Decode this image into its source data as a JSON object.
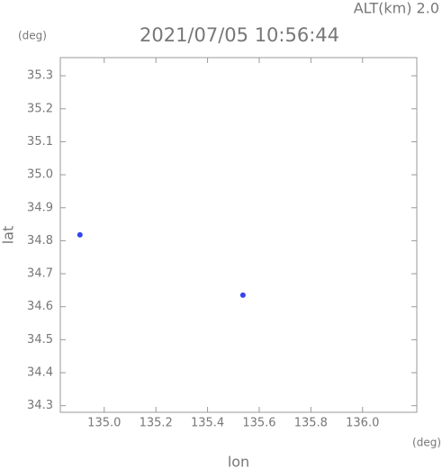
{
  "chart_data": {
    "type": "scatter",
    "title": "2021/07/05 10:56:44",
    "subtitle": "ALT(km)  2.0",
    "y_unit": "(deg)",
    "x_unit": "(deg)",
    "x_label": "lon",
    "y_label": "lat",
    "series": [
      {
        "color": "#3344ee",
        "x": [
          134.906,
          135.537
        ],
        "values": [
          34.818,
          34.635
        ]
      }
    ],
    "xlim": [
      134.83,
      136.21
    ],
    "xticks": [
      {
        "value": 135.0,
        "label": "135.0"
      },
      135.2,
      135.4,
      135.6,
      135.8,
      {
        "value": 136.0,
        "label": "136.0"
      }
    ],
    "ylim": [
      34.28,
      35.355
    ],
    "yticks": [
      34.3,
      34.4,
      34.5,
      34.6,
      34.7,
      34.8,
      34.9,
      {
        "value": 35.0,
        "label": "35.0"
      },
      35.1,
      35.2,
      35.3
    ]
  }
}
